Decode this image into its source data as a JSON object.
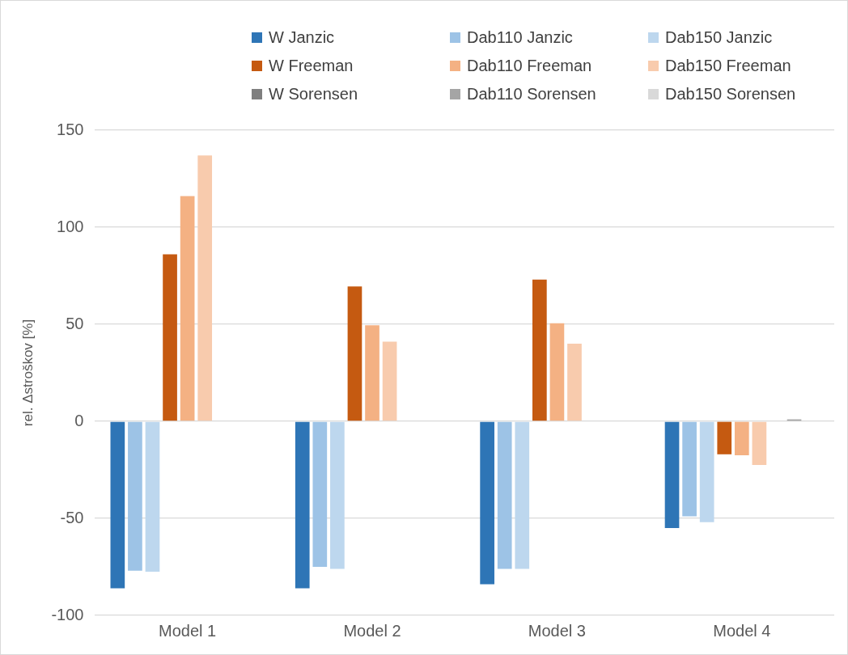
{
  "chart_data": {
    "type": "bar",
    "ylabel": "rel. Δstroškov [%]",
    "categories": [
      "Model 1",
      "Model 2",
      "Model 3",
      "Model 4"
    ],
    "series": [
      {
        "name": "W Janzic",
        "color": "#2e75b6",
        "values": [
          -86,
          -86,
          -84,
          -55
        ]
      },
      {
        "name": "Dab110 Janzic",
        "color": "#9dc3e6",
        "values": [
          -77,
          -75,
          -76,
          -49
        ]
      },
      {
        "name": "Dab150 Janzic",
        "color": "#bdd7ee",
        "values": [
          -77.5,
          -76,
          -76,
          -52
        ]
      },
      {
        "name": "W Freeman",
        "color": "#c55a11",
        "values": [
          86,
          69.5,
          73,
          -17
        ]
      },
      {
        "name": "Dab110 Freeman",
        "color": "#f4b183",
        "values": [
          116,
          49.5,
          50.5,
          -17.5
        ]
      },
      {
        "name": "Dab150 Freeman",
        "color": "#f8cbad",
        "values": [
          137,
          41,
          40,
          -22.5
        ]
      },
      {
        "name": "W Sorensen",
        "color": "#7f7f7f",
        "values": [
          0,
          0,
          0,
          0
        ]
      },
      {
        "name": "Dab110 Sorensen",
        "color": "#a5a5a5",
        "values": [
          0,
          0,
          0,
          1
        ]
      },
      {
        "name": "Dab150 Sorensen",
        "color": "#d9d9d9",
        "values": [
          0,
          0,
          0,
          0
        ]
      }
    ],
    "ylim": [
      -100,
      150
    ],
    "yticks": [
      -100,
      -50,
      0,
      50,
      100,
      150
    ],
    "grid": "y",
    "legend": "top"
  }
}
